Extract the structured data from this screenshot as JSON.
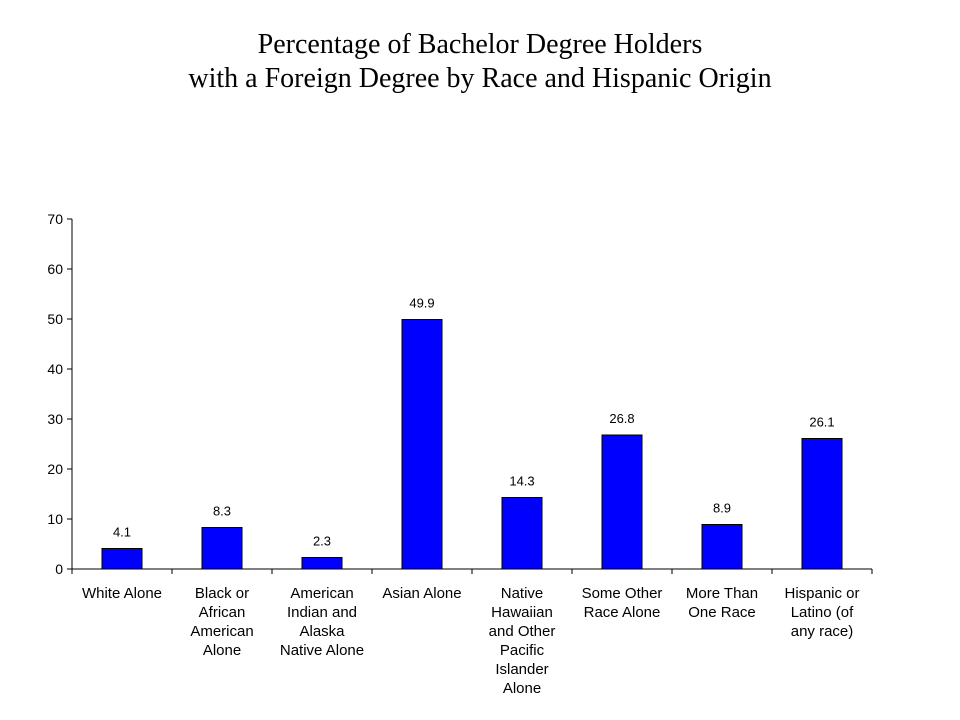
{
  "title_lines": [
    "Percentage of Bachelor Degree Holders",
    "with a Foreign Degree by Race and Hispanic Origin"
  ],
  "colors": {
    "bar_fill": "#0000ff",
    "bar_stroke": "#000000",
    "axis": "#000000",
    "background": "#ffffff"
  },
  "chart_data": {
    "type": "bar",
    "title": "Percentage of Bachelor Degree Holders with a Foreign Degree by Race and Hispanic Origin",
    "xlabel": "",
    "ylabel": "",
    "ylim": [
      0,
      70
    ],
    "yticks": [
      0,
      10,
      20,
      30,
      40,
      50,
      60,
      70
    ],
    "grid": false,
    "legend": "none",
    "categories": [
      [
        "White Alone"
      ],
      [
        "Black or",
        "African",
        "American",
        "Alone"
      ],
      [
        "American",
        "Indian and",
        "Alaska",
        "Native Alone"
      ],
      [
        "Asian Alone"
      ],
      [
        "Native",
        "Hawaiian",
        "and Other",
        "Pacific",
        "Islander",
        "Alone"
      ],
      [
        "Some Other",
        "Race Alone"
      ],
      [
        "More Than",
        "One Race"
      ],
      [
        "Hispanic or",
        "Latino (of",
        "any race)"
      ]
    ],
    "values": [
      4.1,
      8.3,
      2.3,
      49.9,
      14.3,
      26.8,
      8.9,
      26.1
    ],
    "value_labels": [
      "4.1",
      "8.3",
      "2.3",
      "49.9",
      "14.3",
      "26.8",
      "8.9",
      "26.1"
    ]
  }
}
